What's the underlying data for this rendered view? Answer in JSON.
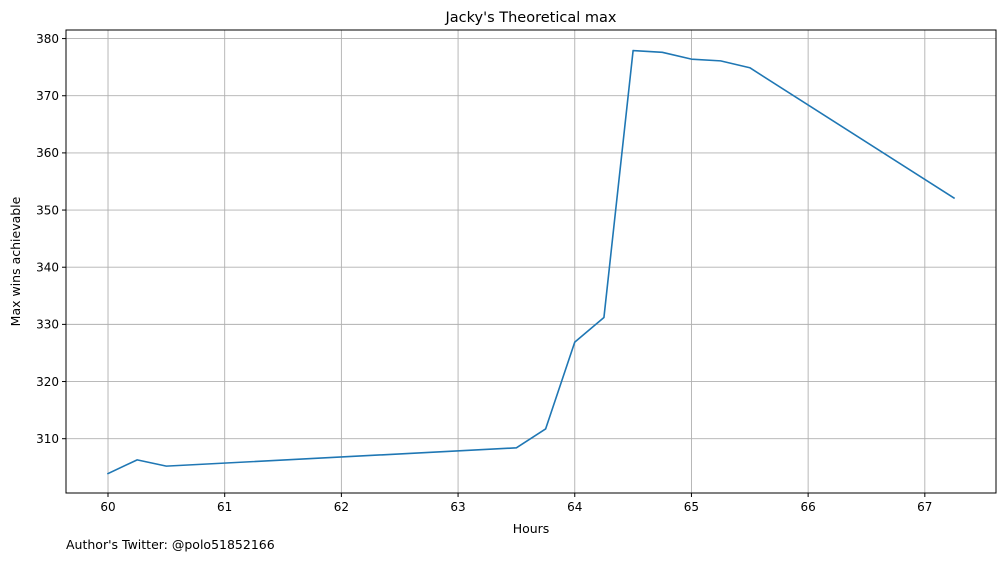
{
  "chart_data": {
    "type": "line",
    "title": "Jacky's Theoretical max",
    "xlabel": "Hours",
    "ylabel": "Max wins achievable",
    "xlim": [
      59.64,
      67.61
    ],
    "ylim": [
      300.5,
      381.5
    ],
    "xticks": [
      60,
      61,
      62,
      63,
      64,
      65,
      66,
      67
    ],
    "yticks": [
      310,
      320,
      330,
      340,
      350,
      360,
      370,
      380
    ],
    "grid": true,
    "series": [
      {
        "color": "#1f77b4",
        "x": [
          60,
          60.25,
          60.5,
          63.5,
          63.75,
          64,
          64.25,
          64.5,
          64.75,
          65,
          65.25,
          65.5,
          67.25
        ],
        "y": [
          303.9,
          306.3,
          305.2,
          308.4,
          311.7,
          326.9,
          331.2,
          377.9,
          377.6,
          376.4,
          376.1,
          374.9,
          352.1
        ]
      }
    ]
  },
  "footer": {
    "credit": "Author's Twitter: @polo51852166"
  }
}
